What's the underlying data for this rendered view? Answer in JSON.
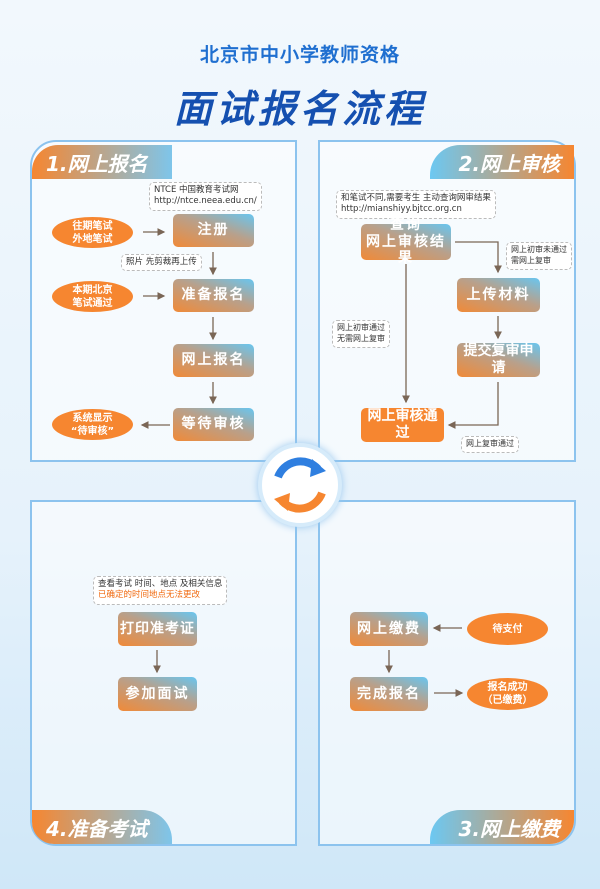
{
  "header": {
    "subtitle": "北京市中小学教师资格",
    "title": "面试报名流程"
  },
  "colors": {
    "orange": "#f68630",
    "blue": "#68c6f0",
    "title_blue": "#1550b0",
    "arrow": "#7a6656"
  },
  "step1": {
    "label": "1.网上报名",
    "note_site": [
      "NTCE 中国教育考试网",
      "http://ntce.neea.edu.cn/"
    ],
    "note_photo": "照片 先剪裁再上传",
    "boxes": [
      "注册",
      "准备报名",
      "网上报名",
      "等待审核"
    ],
    "ovals": [
      [
        "往期笔试",
        "外地笔试"
      ],
      [
        "本期北京",
        "笔试通过"
      ],
      [
        "系统显示",
        "“待审核”"
      ]
    ]
  },
  "step2": {
    "label": "2.网上审核",
    "note_top": [
      "和笔试不同,需要考生 主动查询网审结果",
      "http://mianshiyy.bjtcc.org.cn"
    ],
    "boxes": {
      "query": [
        "查询",
        "网上审核结果"
      ],
      "upload": "上传材料",
      "submit": "提交复审申请",
      "pass": "网上审核通过"
    },
    "note_fail": [
      "网上初审未通过",
      "需网上复审"
    ],
    "note_pass": [
      "网上初审通过",
      "无需网上复审"
    ],
    "note_review": "网上复审通过"
  },
  "step3": {
    "label": "3.网上缴费",
    "boxes": [
      "网上缴费",
      "完成报名"
    ],
    "ovals": [
      [
        "待支付"
      ],
      [
        "报名成功",
        "（已缴费）"
      ]
    ]
  },
  "step4": {
    "label": "4.准备考试",
    "note": [
      "查看考试 时间、地点 及相关信息",
      "已确定的时间地点无法更改"
    ],
    "boxes": [
      "打印准考证",
      "参加面试"
    ]
  }
}
